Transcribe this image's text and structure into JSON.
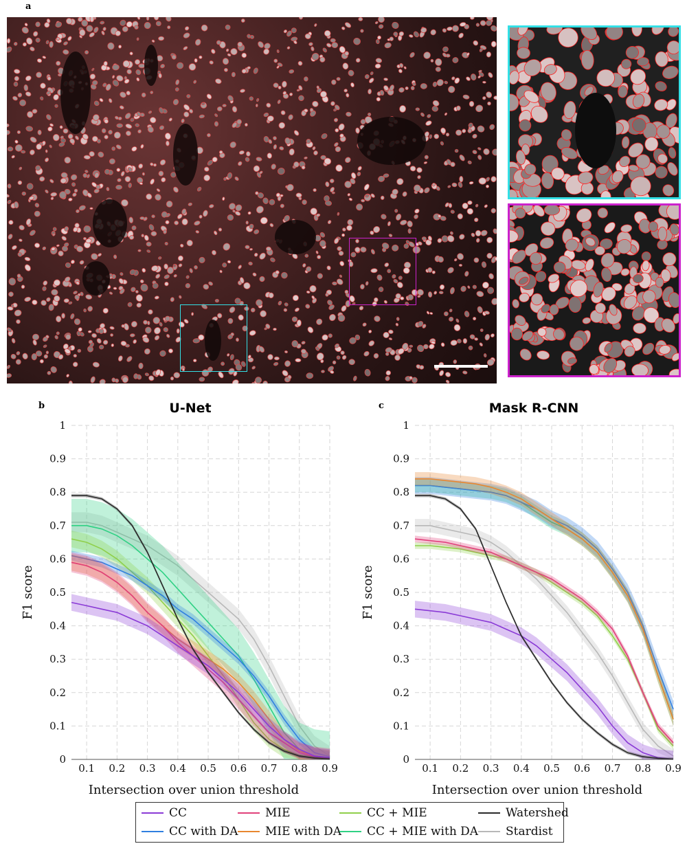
{
  "panels": {
    "a": "a",
    "b": "b",
    "c": "c"
  },
  "colors": {
    "CC": "#8a3ad6",
    "MIE": "#e0407a",
    "CC + MIE": "#8fcf4a",
    "Watershed": "#2a2a2a",
    "CC with DA": "#2f7fe0",
    "MIE with DA": "#e8862f",
    "CC + MIE with DA": "#2fd184",
    "Stardist": "#b8b8b8",
    "inset_cyan": "#33e0e6",
    "inset_magenta": "#cc22cc",
    "outline_red": "#ff2020"
  },
  "legend": {
    "items": [
      "CC",
      "MIE",
      "CC + MIE",
      "Watershed",
      "CC with DA",
      "MIE with DA",
      "CC + MIE with DA",
      "Stardist"
    ]
  },
  "chart_data": [
    {
      "type": "line",
      "title": "U-Net",
      "xlabel": "Intersection over union threshold",
      "ylabel": "F1 score",
      "xlim": [
        0.05,
        0.9
      ],
      "ylim": [
        0,
        1
      ],
      "xticks": [
        "0.1",
        "0.2",
        "0.3",
        "0.4",
        "0.5",
        "0.6",
        "0.7",
        "0.8",
        "0.9"
      ],
      "yticks": [
        "0",
        "0.1",
        "0.2",
        "0.3",
        "0.4",
        "0.5",
        "0.6",
        "0.7",
        "0.8",
        "0.9",
        "1"
      ],
      "grid": true,
      "x": [
        0.05,
        0.1,
        0.15,
        0.2,
        0.25,
        0.3,
        0.35,
        0.4,
        0.45,
        0.5,
        0.55,
        0.6,
        0.65,
        0.7,
        0.75,
        0.8,
        0.85,
        0.9
      ],
      "series": [
        {
          "name": "CC",
          "values": [
            0.47,
            0.46,
            0.45,
            0.44,
            0.42,
            0.4,
            0.37,
            0.34,
            0.31,
            0.28,
            0.24,
            0.2,
            0.15,
            0.1,
            0.06,
            0.03,
            0.01,
            0.005
          ],
          "band": 0.025
        },
        {
          "name": "MIE",
          "values": [
            0.59,
            0.58,
            0.56,
            0.53,
            0.49,
            0.44,
            0.4,
            0.35,
            0.31,
            0.27,
            0.23,
            0.18,
            0.13,
            0.08,
            0.05,
            0.02,
            0.008,
            0.003
          ],
          "band": 0.03
        },
        {
          "name": "CC + MIE",
          "values": [
            0.66,
            0.65,
            0.63,
            0.6,
            0.56,
            0.52,
            0.47,
            0.42,
            0.37,
            0.31,
            0.25,
            0.18,
            0.11,
            0.06,
            0.03,
            0.01,
            0.005,
            0.002
          ],
          "band": 0.025
        },
        {
          "name": "Watershed",
          "values": [
            0.79,
            0.79,
            0.78,
            0.75,
            0.7,
            0.62,
            0.52,
            0.42,
            0.33,
            0.26,
            0.2,
            0.14,
            0.09,
            0.05,
            0.025,
            0.01,
            0.004,
            0.001
          ],
          "band": 0.005
        },
        {
          "name": "CC with DA",
          "values": [
            0.61,
            0.6,
            0.59,
            0.57,
            0.55,
            0.52,
            0.49,
            0.45,
            0.42,
            0.38,
            0.34,
            0.3,
            0.25,
            0.19,
            0.12,
            0.06,
            0.02,
            0.008
          ],
          "band": 0.015
        },
        {
          "name": "MIE with DA",
          "values": [
            0.59,
            0.58,
            0.56,
            0.53,
            0.49,
            0.44,
            0.4,
            0.36,
            0.33,
            0.3,
            0.27,
            0.23,
            0.18,
            0.12,
            0.06,
            0.025,
            0.01,
            0.003
          ],
          "band": 0.025
        },
        {
          "name": "CC + MIE with DA",
          "values": [
            0.7,
            0.7,
            0.69,
            0.67,
            0.64,
            0.6,
            0.56,
            0.51,
            0.46,
            0.41,
            0.36,
            0.31,
            0.24,
            0.16,
            0.08,
            0.03,
            0.01,
            0.004
          ],
          "band": 0.08
        },
        {
          "name": "Stardist",
          "values": [
            0.71,
            0.71,
            0.7,
            0.68,
            0.66,
            0.64,
            0.61,
            0.58,
            0.54,
            0.5,
            0.46,
            0.42,
            0.36,
            0.28,
            0.19,
            0.1,
            0.04,
            0.01
          ],
          "band": 0.03
        }
      ]
    },
    {
      "type": "line",
      "title": "Mask R-CNN",
      "xlabel": "Intersection over union threshold",
      "ylabel": "F1 score",
      "xlim": [
        0.05,
        0.9
      ],
      "ylim": [
        0,
        1
      ],
      "xticks": [
        "0.1",
        "0.2",
        "0.3",
        "0.4",
        "0.5",
        "0.6",
        "0.7",
        "0.8",
        "0.9"
      ],
      "yticks": [
        "0",
        "0.1",
        "0.2",
        "0.3",
        "0.4",
        "0.5",
        "0.6",
        "0.7",
        "0.8",
        "0.9",
        "1"
      ],
      "grid": true,
      "x": [
        0.05,
        0.1,
        0.15,
        0.2,
        0.25,
        0.3,
        0.35,
        0.4,
        0.45,
        0.5,
        0.55,
        0.6,
        0.65,
        0.7,
        0.75,
        0.8,
        0.85,
        0.9
      ],
      "series": [
        {
          "name": "CC",
          "values": [
            0.45,
            0.445,
            0.44,
            0.43,
            0.42,
            0.41,
            0.39,
            0.37,
            0.34,
            0.3,
            0.26,
            0.21,
            0.16,
            0.1,
            0.05,
            0.02,
            0.005,
            0.001
          ],
          "band": 0.025
        },
        {
          "name": "MIE",
          "values": [
            0.66,
            0.655,
            0.65,
            0.64,
            0.63,
            0.62,
            0.6,
            0.58,
            0.56,
            0.54,
            0.51,
            0.48,
            0.44,
            0.39,
            0.31,
            0.2,
            0.1,
            0.05
          ],
          "band": 0.01
        },
        {
          "name": "CC + MIE",
          "values": [
            0.64,
            0.64,
            0.635,
            0.63,
            0.62,
            0.61,
            0.6,
            0.58,
            0.56,
            0.53,
            0.5,
            0.47,
            0.43,
            0.37,
            0.3,
            0.2,
            0.09,
            0.04
          ],
          "band": 0.01
        },
        {
          "name": "Watershed",
          "values": [
            0.79,
            0.79,
            0.78,
            0.75,
            0.69,
            0.58,
            0.47,
            0.37,
            0.3,
            0.23,
            0.17,
            0.12,
            0.08,
            0.045,
            0.02,
            0.008,
            0.003,
            0.001
          ],
          "band": 0.005
        },
        {
          "name": "CC with DA",
          "values": [
            0.82,
            0.82,
            0.815,
            0.81,
            0.805,
            0.8,
            0.79,
            0.77,
            0.75,
            0.72,
            0.7,
            0.67,
            0.63,
            0.57,
            0.5,
            0.4,
            0.27,
            0.15
          ],
          "band": 0.025
        },
        {
          "name": "MIE with DA",
          "values": [
            0.84,
            0.84,
            0.835,
            0.83,
            0.825,
            0.815,
            0.8,
            0.78,
            0.75,
            0.72,
            0.69,
            0.66,
            0.62,
            0.56,
            0.49,
            0.39,
            0.25,
            0.12
          ],
          "band": 0.02
        },
        {
          "name": "CC + MIE with DA",
          "values": [
            0.82,
            0.82,
            0.815,
            0.81,
            0.805,
            0.8,
            0.79,
            0.77,
            0.74,
            0.71,
            0.69,
            0.66,
            0.62,
            0.56,
            0.49,
            0.39,
            0.25,
            0.12
          ],
          "band": 0.02
        },
        {
          "name": "Stardist",
          "values": [
            0.7,
            0.7,
            0.69,
            0.68,
            0.67,
            0.65,
            0.62,
            0.58,
            0.54,
            0.49,
            0.44,
            0.38,
            0.32,
            0.25,
            0.17,
            0.09,
            0.04,
            0.01
          ],
          "band": 0.02
        }
      ]
    }
  ]
}
